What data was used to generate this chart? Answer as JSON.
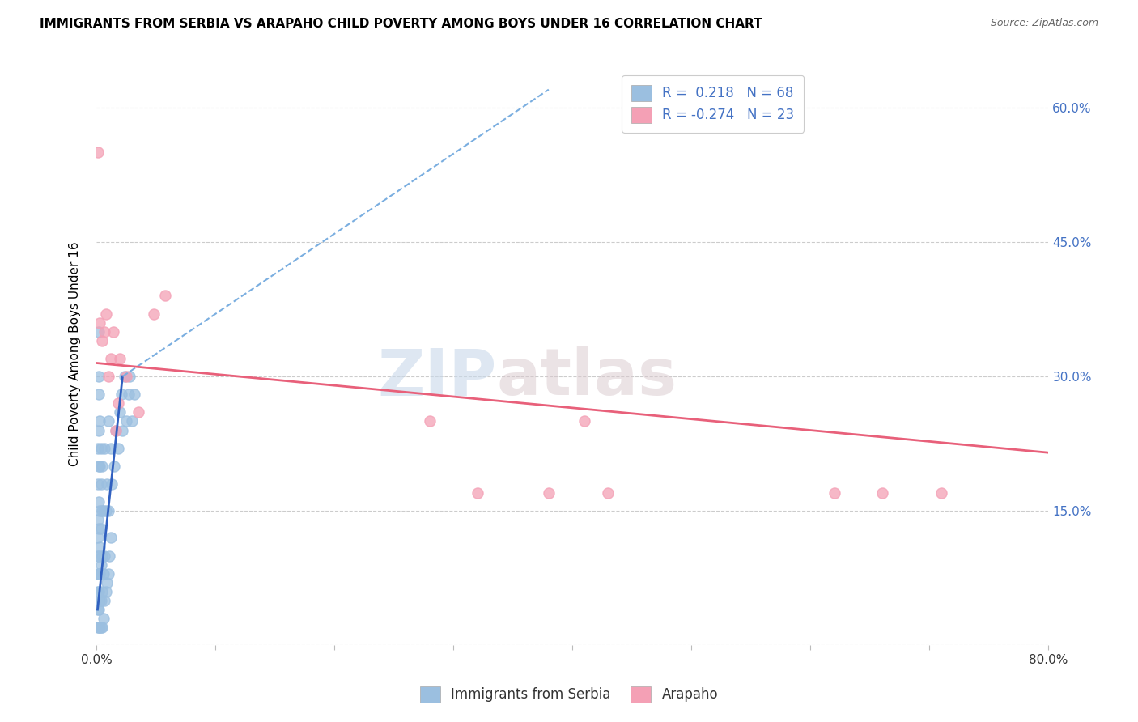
{
  "title": "IMMIGRANTS FROM SERBIA VS ARAPAHO CHILD POVERTY AMONG BOYS UNDER 16 CORRELATION CHART",
  "source": "Source: ZipAtlas.com",
  "ylabel": "Child Poverty Among Boys Under 16",
  "xlim": [
    0.0,
    0.8
  ],
  "ylim": [
    0.0,
    0.65
  ],
  "ytick_positions": [
    0.0,
    0.15,
    0.3,
    0.45,
    0.6
  ],
  "ytick_labels_right": [
    "",
    "15.0%",
    "30.0%",
    "45.0%",
    "60.0%"
  ],
  "xtick_positions": [
    0.0,
    0.1,
    0.2,
    0.3,
    0.4,
    0.5,
    0.6,
    0.7,
    0.8
  ],
  "serbia_color": "#9bbfe0",
  "arapaho_color": "#f4a0b5",
  "serbia_solid_line_color": "#3060c0",
  "serbia_dashed_line_color": "#7aaee0",
  "arapaho_line_color": "#e8607a",
  "watermark_zip": "ZIP",
  "watermark_atlas": "atlas",
  "serbia_R": 0.218,
  "serbia_N": 68,
  "arapaho_R": -0.274,
  "arapaho_N": 23,
  "serbia_scatter_x": [
    0.001,
    0.001,
    0.001,
    0.001,
    0.001,
    0.001,
    0.001,
    0.001,
    0.001,
    0.002,
    0.002,
    0.002,
    0.002,
    0.002,
    0.002,
    0.002,
    0.002,
    0.002,
    0.002,
    0.002,
    0.002,
    0.003,
    0.003,
    0.003,
    0.003,
    0.003,
    0.003,
    0.003,
    0.004,
    0.004,
    0.004,
    0.004,
    0.004,
    0.004,
    0.005,
    0.005,
    0.005,
    0.005,
    0.005,
    0.006,
    0.006,
    0.006,
    0.007,
    0.007,
    0.007,
    0.008,
    0.008,
    0.009,
    0.009,
    0.01,
    0.01,
    0.01,
    0.011,
    0.012,
    0.012,
    0.013,
    0.015,
    0.016,
    0.018,
    0.02,
    0.021,
    0.022,
    0.024,
    0.025,
    0.027,
    0.028,
    0.03,
    0.032
  ],
  "serbia_scatter_y": [
    0.02,
    0.04,
    0.06,
    0.08,
    0.1,
    0.12,
    0.14,
    0.18,
    0.22,
    0.02,
    0.04,
    0.06,
    0.08,
    0.1,
    0.13,
    0.16,
    0.2,
    0.24,
    0.28,
    0.3,
    0.35,
    0.02,
    0.05,
    0.08,
    0.11,
    0.15,
    0.2,
    0.25,
    0.02,
    0.05,
    0.09,
    0.13,
    0.18,
    0.22,
    0.02,
    0.06,
    0.1,
    0.15,
    0.2,
    0.03,
    0.08,
    0.15,
    0.05,
    0.1,
    0.22,
    0.06,
    0.15,
    0.07,
    0.18,
    0.08,
    0.15,
    0.25,
    0.1,
    0.12,
    0.22,
    0.18,
    0.2,
    0.24,
    0.22,
    0.26,
    0.28,
    0.24,
    0.3,
    0.25,
    0.28,
    0.3,
    0.25,
    0.28
  ],
  "arapaho_scatter_x": [
    0.001,
    0.003,
    0.005,
    0.007,
    0.008,
    0.01,
    0.012,
    0.014,
    0.016,
    0.018,
    0.02,
    0.025,
    0.035,
    0.048,
    0.058,
    0.28,
    0.32,
    0.38,
    0.41,
    0.43,
    0.62,
    0.66,
    0.71
  ],
  "arapaho_scatter_y": [
    0.55,
    0.36,
    0.34,
    0.35,
    0.37,
    0.3,
    0.32,
    0.35,
    0.24,
    0.27,
    0.32,
    0.3,
    0.26,
    0.37,
    0.39,
    0.25,
    0.17,
    0.17,
    0.25,
    0.17,
    0.17,
    0.17,
    0.17
  ],
  "serbia_solid_trend_x": [
    0.001,
    0.022
  ],
  "serbia_solid_trend_y": [
    0.04,
    0.3
  ],
  "serbia_dashed_trend_x": [
    0.022,
    0.38
  ],
  "serbia_dashed_trend_y": [
    0.3,
    0.62
  ],
  "arapaho_trend_x": [
    0.0,
    0.8
  ],
  "arapaho_trend_y": [
    0.315,
    0.215
  ]
}
